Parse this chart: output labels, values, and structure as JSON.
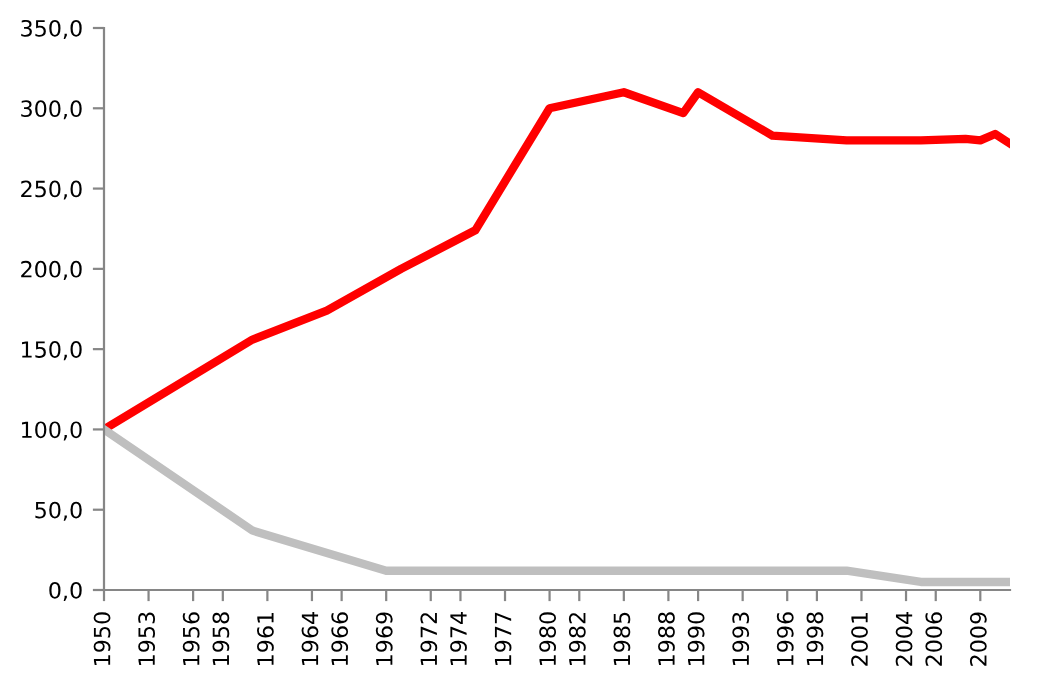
{
  "chart_data": {
    "type": "line",
    "xlim": [
      1950,
      2011
    ],
    "ylim": [
      0,
      350
    ],
    "yticks": [
      {
        "value": 0,
        "label": "0,0"
      },
      {
        "value": 50,
        "label": "50,0"
      },
      {
        "value": 100,
        "label": "100,0"
      },
      {
        "value": 150,
        "label": "150,0"
      },
      {
        "value": 200,
        "label": "200,0"
      },
      {
        "value": 250,
        "label": "250,0"
      },
      {
        "value": 300,
        "label": "300,0"
      },
      {
        "value": 350,
        "label": "350,0"
      }
    ],
    "xticks": [
      1950,
      1953,
      1956,
      1958,
      1961,
      1964,
      1966,
      1969,
      1972,
      1974,
      1977,
      1980,
      1982,
      1985,
      1988,
      1990,
      1993,
      1996,
      1998,
      2001,
      2004,
      2006,
      2009
    ],
    "grid": false,
    "marker": "none",
    "line_style": "solid",
    "series": [
      {
        "color": "#ff0000",
        "x": [
          1950,
          1960,
          1965,
          1970,
          1975,
          1980,
          1985,
          1989,
          1990,
          1995,
          2000,
          2005,
          2008,
          2009,
          2010,
          2011
        ],
        "values": [
          100,
          156,
          174,
          200,
          224,
          300,
          310,
          297,
          310,
          283,
          280,
          280,
          281,
          280,
          284,
          278
        ]
      },
      {
        "color": "#bfbfbf",
        "x": [
          1950,
          1960,
          1969,
          2000,
          2005,
          2011
        ],
        "values": [
          100,
          37,
          12,
          12,
          5,
          5
        ]
      }
    ]
  }
}
